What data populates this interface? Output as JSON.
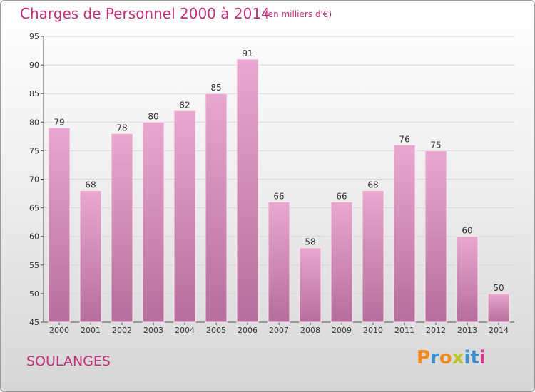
{
  "header": {
    "title": "Charges de Personnel 2000 à 2014",
    "subtitle": "(en milliers d'€)"
  },
  "footer": {
    "commune": "SOULANGES",
    "logo": {
      "letters": [
        "P",
        "r",
        "o",
        "x",
        "i",
        "t",
        "i"
      ],
      "colors": [
        "#f08a1e",
        "#3a8fd0",
        "#f08a1e",
        "#b7c829",
        "#3a8fd0",
        "#3a8fd0",
        "#d23c8c"
      ]
    }
  },
  "colors": {
    "accent": "#c2307a",
    "bar_light": "#e8a8cf",
    "bar_dark": "#b66e9c",
    "grid": "#d8d8d8"
  },
  "chart_data": {
    "type": "bar",
    "title": "Charges de Personnel 2000 à 2014",
    "subtitle": "(en milliers d'€)",
    "categories": [
      "2000",
      "2001",
      "2002",
      "2003",
      "2004",
      "2005",
      "2006",
      "2007",
      "2008",
      "2009",
      "2010",
      "2011",
      "2012",
      "2013",
      "2014"
    ],
    "values": [
      79,
      68,
      78,
      80,
      82,
      85,
      91,
      66,
      58,
      66,
      68,
      76,
      75,
      60,
      50
    ],
    "ylim": [
      45,
      95
    ],
    "yticks": [
      45,
      50,
      55,
      60,
      65,
      70,
      75,
      80,
      85,
      90,
      95
    ],
    "grid": true,
    "data_labels": true
  }
}
